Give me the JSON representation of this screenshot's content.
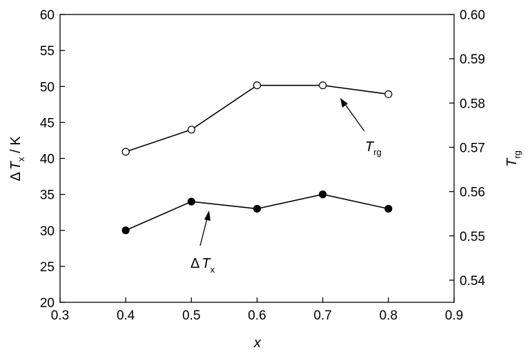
{
  "chart_data": {
    "type": "scatter",
    "title": "",
    "xlabel": "x",
    "ylabel_left": {
      "delta": "Δ",
      "T": "T",
      "sub": "x",
      "unit": " / K"
    },
    "ylabel_right": {
      "T": "T",
      "sub": "rg"
    },
    "xlim": [
      0.3,
      0.9
    ],
    "ylim_left": [
      20,
      60
    ],
    "ylim_right": [
      0.535,
      0.6
    ],
    "x_ticks": [
      "0.3",
      "0.4",
      "0.5",
      "0.6",
      "0.7",
      "0.8",
      "0.9"
    ],
    "y_left_ticks": [
      "20",
      "25",
      "30",
      "35",
      "40",
      "45",
      "50",
      "55",
      "60"
    ],
    "y_right_ticks": [
      "0.54",
      "0.55",
      "0.56",
      "0.57",
      "0.58",
      "0.59",
      "0.60"
    ],
    "grid": false,
    "series": [
      {
        "axis": "left",
        "marker": "filled-circle",
        "x": [
          0.4,
          0.5,
          0.6,
          0.7,
          0.8
        ],
        "y": [
          30,
          34,
          33,
          35,
          33
        ]
      },
      {
        "axis": "right",
        "marker": "open-circle",
        "x": [
          0.4,
          0.5,
          0.6,
          0.7,
          0.8
        ],
        "y": [
          0.569,
          0.574,
          0.584,
          0.584,
          0.582
        ]
      }
    ],
    "annotations": [
      {
        "id": "dtx",
        "delta": "Δ",
        "T": "T",
        "sub": "x"
      },
      {
        "id": "trg",
        "T": "T",
        "sub": "rg"
      }
    ]
  }
}
